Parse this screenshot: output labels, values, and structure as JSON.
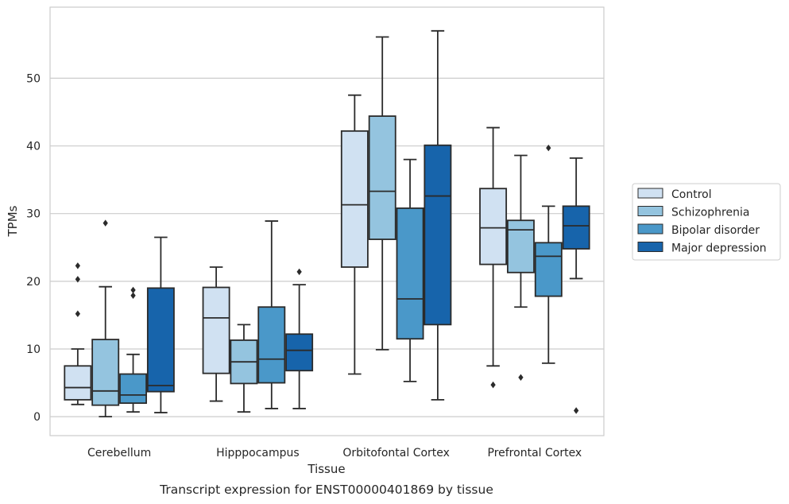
{
  "chart_data": {
    "type": "box",
    "caption": "Transcript expression for ENST00000401869 by tissue",
    "xlabel": "Tissue",
    "ylabel": "TPMs",
    "ylim": [
      -2.8,
      60.5
    ],
    "yticks": [
      0,
      10,
      20,
      30,
      40,
      50
    ],
    "grid": true,
    "legend_position": "right",
    "categories": [
      "Cerebellum",
      "Hipppocampus",
      "Orbitofontal Cortex",
      "Prefrontal Cortex"
    ],
    "series": [
      {
        "name": "Control",
        "color": "#d0e1f2",
        "boxes": [
          {
            "whisker_low": 1.8,
            "q1": 2.5,
            "median": 4.3,
            "q3": 7.5,
            "whisker_high": 10.0,
            "outliers": [
              15.2,
              20.3,
              22.3
            ]
          },
          {
            "whisker_low": 2.3,
            "q1": 6.4,
            "median": 14.6,
            "q3": 19.1,
            "whisker_high": 22.1,
            "outliers": []
          },
          {
            "whisker_low": 6.3,
            "q1": 22.1,
            "median": 31.3,
            "q3": 42.2,
            "whisker_high": 47.5,
            "outliers": []
          },
          {
            "whisker_low": 7.5,
            "q1": 22.5,
            "median": 27.9,
            "q3": 33.7,
            "whisker_high": 42.7,
            "outliers": [
              4.7
            ]
          }
        ]
      },
      {
        "name": "Schizophrenia",
        "color": "#94c4df",
        "boxes": [
          {
            "whisker_low": 0.0,
            "q1": 1.7,
            "median": 3.8,
            "q3": 11.4,
            "whisker_high": 19.2,
            "outliers": [
              28.6
            ]
          },
          {
            "whisker_low": 0.7,
            "q1": 4.9,
            "median": 8.1,
            "q3": 11.3,
            "whisker_high": 13.6,
            "outliers": []
          },
          {
            "whisker_low": 9.9,
            "q1": 26.2,
            "median": 33.3,
            "q3": 44.4,
            "whisker_high": 56.1,
            "outliers": []
          },
          {
            "whisker_low": 16.2,
            "q1": 21.3,
            "median": 27.6,
            "q3": 29.0,
            "whisker_high": 38.6,
            "outliers": [
              5.8
            ]
          }
        ]
      },
      {
        "name": "Bipolar disorder",
        "color": "#4a98c9",
        "boxes": [
          {
            "whisker_low": 0.7,
            "q1": 2.0,
            "median": 3.2,
            "q3": 6.3,
            "whisker_high": 9.2,
            "outliers": [
              17.9,
              18.7
            ]
          },
          {
            "whisker_low": 1.2,
            "q1": 5.0,
            "median": 8.5,
            "q3": 16.2,
            "whisker_high": 28.9,
            "outliers": []
          },
          {
            "whisker_low": 5.2,
            "q1": 11.5,
            "median": 17.4,
            "q3": 30.8,
            "whisker_high": 38.0,
            "outliers": []
          },
          {
            "whisker_low": 7.9,
            "q1": 17.8,
            "median": 23.7,
            "q3": 25.7,
            "whisker_high": 31.1,
            "outliers": [
              39.7
            ]
          }
        ]
      },
      {
        "name": "Major depression",
        "color": "#1764ab",
        "boxes": [
          {
            "whisker_low": 0.6,
            "q1": 3.7,
            "median": 4.6,
            "q3": 19.0,
            "whisker_high": 26.5,
            "outliers": []
          },
          {
            "whisker_low": 1.2,
            "q1": 6.8,
            "median": 9.8,
            "q3": 12.2,
            "whisker_high": 19.5,
            "outliers": [
              21.4
            ]
          },
          {
            "whisker_low": 2.5,
            "q1": 13.6,
            "median": 32.6,
            "q3": 40.1,
            "whisker_high": 57.0,
            "outliers": []
          },
          {
            "whisker_low": 20.4,
            "q1": 24.8,
            "median": 28.2,
            "q3": 31.1,
            "whisker_high": 38.2,
            "outliers": [
              0.9
            ]
          }
        ]
      }
    ]
  }
}
